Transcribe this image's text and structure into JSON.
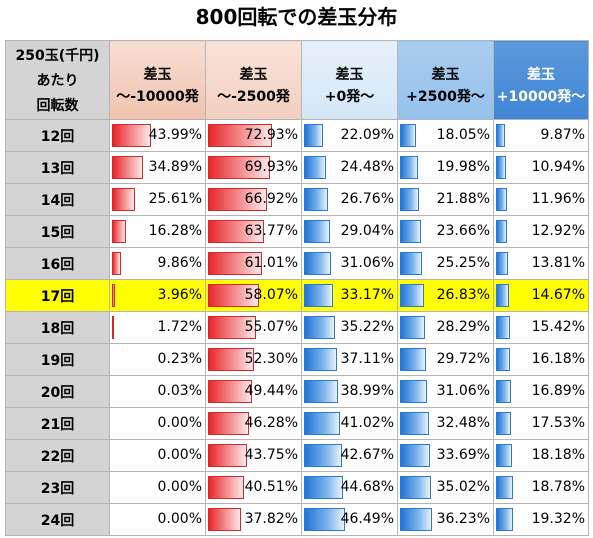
{
  "title": "800回転での差玉分布",
  "header": {
    "label_lines": [
      "250玉(千円)",
      "あたり",
      "回転数"
    ],
    "columns": [
      {
        "line1": "差玉",
        "line2": "～-10000発"
      },
      {
        "line1": "差玉",
        "line2": "～-2500発"
      },
      {
        "line1": "差玉",
        "line2": "+0発～"
      },
      {
        "line1": "差玉",
        "line2": "+2500発～"
      },
      {
        "line1": "差玉",
        "line2": "+10000発～"
      }
    ]
  },
  "colors": {
    "red_bar": "#e8262b",
    "blue_bar": "#1f75d6",
    "highlight": "#ffff00",
    "label_bg": "#d4d4d4"
  },
  "highlight_row": "17回",
  "rows": [
    {
      "label": "12回",
      "values": [
        "43.99%",
        "72.93%",
        "22.09%",
        "18.05%",
        "9.87%"
      ]
    },
    {
      "label": "13回",
      "values": [
        "34.89%",
        "69.93%",
        "24.48%",
        "19.98%",
        "10.94%"
      ]
    },
    {
      "label": "14回",
      "values": [
        "25.61%",
        "66.92%",
        "26.76%",
        "21.88%",
        "11.96%"
      ]
    },
    {
      "label": "15回",
      "values": [
        "16.28%",
        "63.77%",
        "29.04%",
        "23.66%",
        "12.92%"
      ]
    },
    {
      "label": "16回",
      "values": [
        "9.86%",
        "61.01%",
        "31.06%",
        "25.25%",
        "13.81%"
      ]
    },
    {
      "label": "17回",
      "values": [
        "3.96%",
        "58.07%",
        "33.17%",
        "26.83%",
        "14.67%"
      ]
    },
    {
      "label": "18回",
      "values": [
        "1.72%",
        "55.07%",
        "35.22%",
        "28.29%",
        "15.42%"
      ]
    },
    {
      "label": "19回",
      "values": [
        "0.23%",
        "52.30%",
        "37.11%",
        "29.72%",
        "16.18%"
      ]
    },
    {
      "label": "20回",
      "values": [
        "0.03%",
        "49.44%",
        "38.99%",
        "31.06%",
        "16.89%"
      ]
    },
    {
      "label": "21回",
      "values": [
        "0.00%",
        "46.28%",
        "41.02%",
        "32.48%",
        "17.53%"
      ]
    },
    {
      "label": "22回",
      "values": [
        "0.00%",
        "43.75%",
        "42.67%",
        "33.69%",
        "18.18%"
      ]
    },
    {
      "label": "23回",
      "values": [
        "0.00%",
        "40.51%",
        "44.68%",
        "35.02%",
        "18.78%"
      ]
    },
    {
      "label": "24回",
      "values": [
        "0.00%",
        "37.82%",
        "46.49%",
        "36.23%",
        "19.32%"
      ]
    }
  ]
}
